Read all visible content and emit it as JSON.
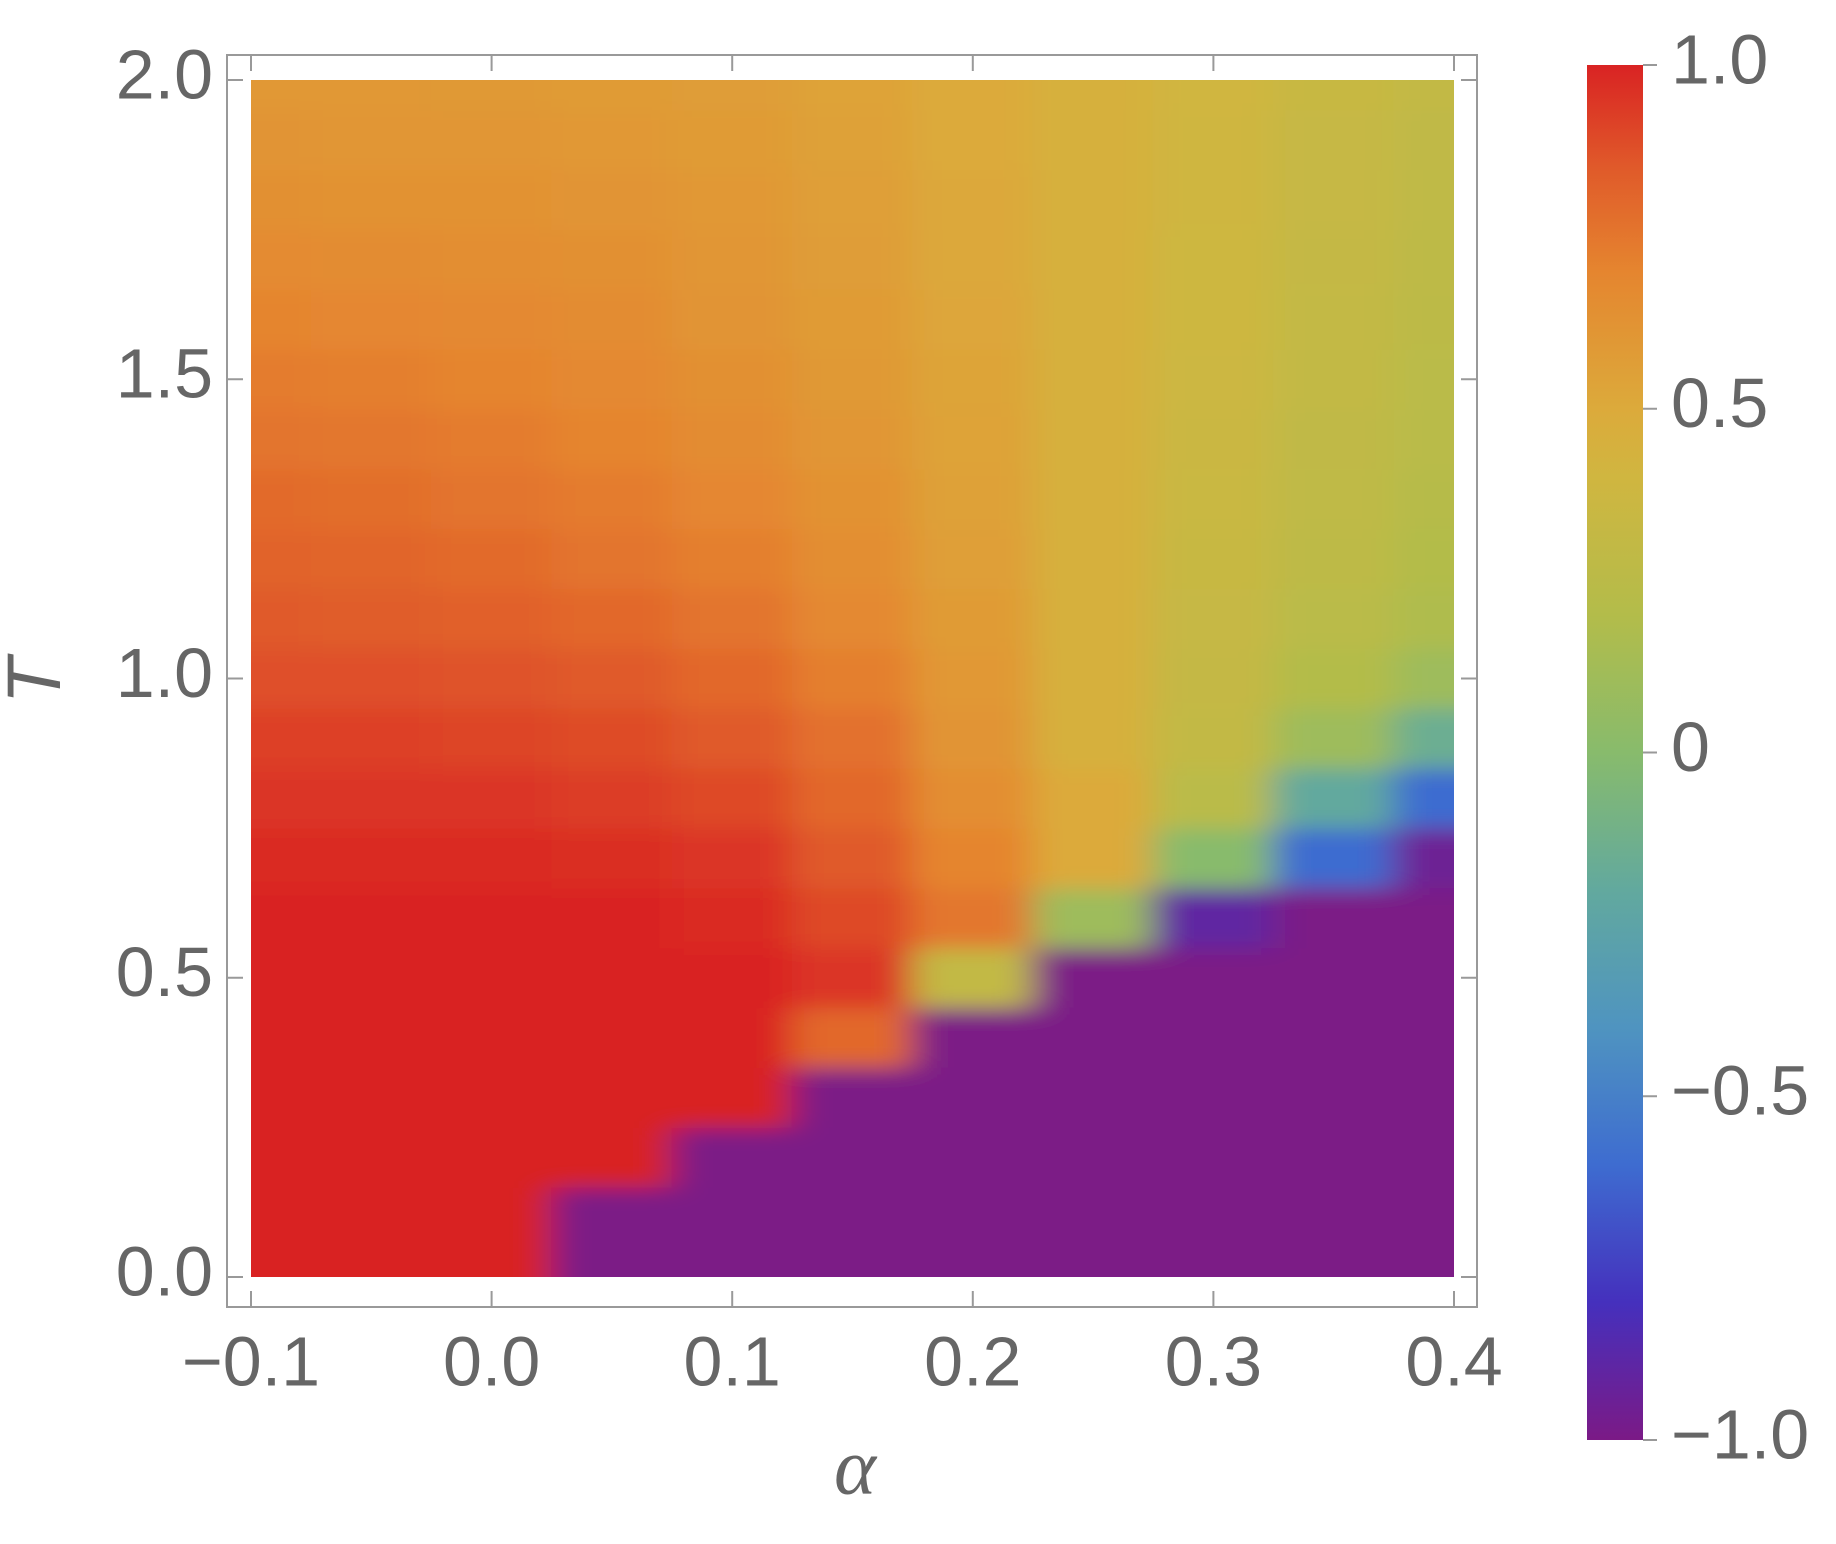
{
  "chart_data": {
    "type": "heatmap",
    "xlabel": "α",
    "ylabel": "T",
    "x": [
      -0.1,
      -0.05,
      0,
      0.05,
      0.1,
      0.15,
      0.2,
      0.25,
      0.3,
      0.35,
      0.4
    ],
    "y": [
      0,
      0.1,
      0.2,
      0.3,
      0.4,
      0.5,
      0.6,
      0.7,
      0.8,
      0.9,
      1,
      1.1,
      1.2,
      1.3,
      1.4,
      1.5,
      1.6,
      1.7,
      1.8,
      1.9,
      2
    ],
    "z": [
      [
        1,
        1,
        1,
        -1,
        -1,
        -1,
        -1,
        -1,
        -1,
        -1,
        -1
      ],
      [
        1,
        1,
        1,
        -1,
        -1,
        -1,
        -1,
        -1,
        -1,
        -1,
        -1
      ],
      [
        1,
        1,
        1,
        1,
        -1,
        -1,
        -1,
        -1,
        -1,
        -1,
        -1
      ],
      [
        1,
        1,
        1,
        1,
        1,
        -1,
        -1,
        -1,
        -1,
        -1,
        -1
      ],
      [
        1,
        1,
        1,
        1,
        1,
        0.8,
        -1,
        -1,
        -1,
        -1,
        -1
      ],
      [
        1,
        1,
        1,
        1,
        1,
        0.95,
        0.3,
        -1,
        -1,
        -1,
        -1
      ],
      [
        1,
        1,
        1,
        1,
        0.98,
        0.9,
        0.75,
        0.1,
        -0.9,
        -1,
        -1
      ],
      [
        0.98,
        0.98,
        0.98,
        0.97,
        0.95,
        0.85,
        0.7,
        0.5,
        0,
        -0.6,
        -0.95
      ],
      [
        0.95,
        0.95,
        0.95,
        0.93,
        0.9,
        0.8,
        0.65,
        0.5,
        0.25,
        -0.2,
        -0.6
      ],
      [
        0.92,
        0.92,
        0.91,
        0.89,
        0.85,
        0.77,
        0.62,
        0.45,
        0.3,
        0.1,
        -0.15
      ],
      [
        0.88,
        0.88,
        0.87,
        0.85,
        0.8,
        0.72,
        0.6,
        0.45,
        0.32,
        0.2,
        0.1
      ],
      [
        0.85,
        0.84,
        0.83,
        0.8,
        0.76,
        0.68,
        0.58,
        0.45,
        0.33,
        0.25,
        0.18
      ],
      [
        0.82,
        0.81,
        0.79,
        0.76,
        0.72,
        0.65,
        0.56,
        0.45,
        0.34,
        0.27,
        0.2
      ],
      [
        0.79,
        0.78,
        0.76,
        0.73,
        0.69,
        0.63,
        0.55,
        0.45,
        0.35,
        0.28,
        0.22
      ],
      [
        0.76,
        0.75,
        0.73,
        0.7,
        0.66,
        0.61,
        0.54,
        0.45,
        0.36,
        0.29,
        0.24
      ],
      [
        0.73,
        0.72,
        0.7,
        0.68,
        0.64,
        0.59,
        0.53,
        0.45,
        0.37,
        0.3,
        0.25
      ],
      [
        0.7,
        0.69,
        0.68,
        0.66,
        0.62,
        0.58,
        0.52,
        0.45,
        0.38,
        0.31,
        0.26
      ],
      [
        0.67,
        0.66,
        0.65,
        0.64,
        0.61,
        0.57,
        0.51,
        0.45,
        0.38,
        0.32,
        0.27
      ],
      [
        0.64,
        0.63,
        0.63,
        0.62,
        0.6,
        0.56,
        0.51,
        0.45,
        0.39,
        0.33,
        0.28
      ],
      [
        0.62,
        0.61,
        0.61,
        0.6,
        0.58,
        0.55,
        0.5,
        0.45,
        0.39,
        0.33,
        0.29
      ],
      [
        0.6,
        0.6,
        0.59,
        0.58,
        0.57,
        0.54,
        0.5,
        0.45,
        0.4,
        0.34,
        0.3
      ]
    ],
    "xlim": [
      -0.1,
      0.4
    ],
    "ylim": [
      0,
      2
    ],
    "xticks": [
      {
        "value": -0.1,
        "label": "−0.1"
      },
      {
        "value": 0,
        "label": "0.0"
      },
      0.1,
      0.2,
      0.3,
      0.4
    ],
    "yticks": [
      {
        "value": 0,
        "label": "0.0"
      },
      0.5,
      {
        "value": 1,
        "label": "1.0"
      },
      1.5,
      {
        "value": 2,
        "label": "2.0"
      }
    ],
    "colorbar": {
      "lim": [
        -1,
        1
      ],
      "ticks": [
        {
          "value": -1,
          "label": "−1.0"
        },
        {
          "value": -0.5,
          "label": "−0.5"
        },
        0,
        0.5,
        {
          "value": 1,
          "label": "1.0"
        }
      ],
      "colorscale": [
        {
          "value": -1,
          "color": "#7b1a86"
        },
        {
          "value": -0.8,
          "color": "#4530bd"
        },
        {
          "value": -0.6,
          "color": "#3e6cd0"
        },
        {
          "value": -0.4,
          "color": "#4f94c0"
        },
        {
          "value": -0.2,
          "color": "#62a99e"
        },
        {
          "value": 0,
          "color": "#88bb6c"
        },
        {
          "value": 0.2,
          "color": "#b3bc4a"
        },
        {
          "value": 0.4,
          "color": "#d0b640"
        },
        {
          "value": 0.5,
          "color": "#dcaa3b"
        },
        {
          "value": 0.7,
          "color": "#e5852f"
        },
        {
          "value": 0.85,
          "color": "#e05a2a"
        },
        {
          "value": 1,
          "color": "#d92323"
        }
      ]
    }
  }
}
